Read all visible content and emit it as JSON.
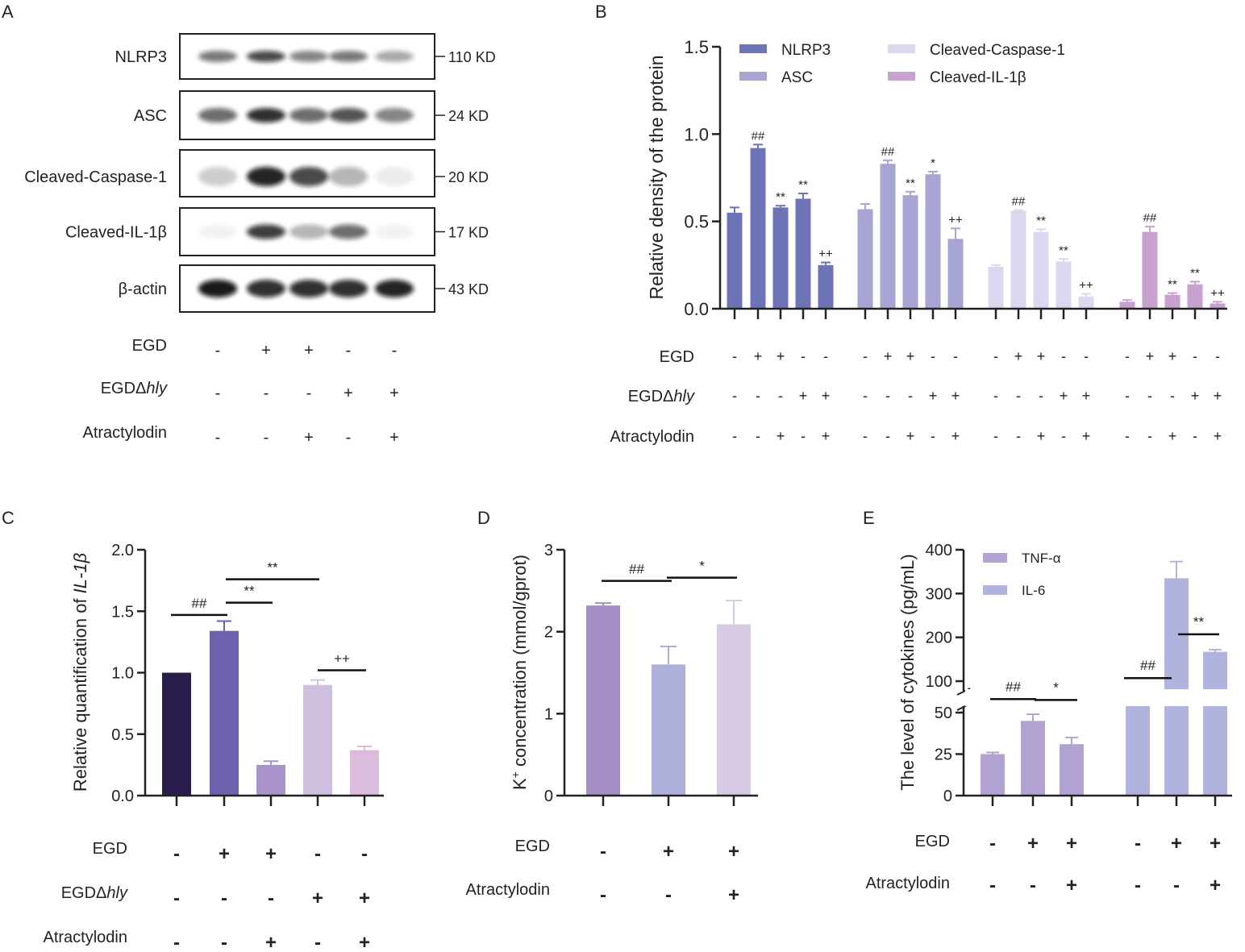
{
  "figure_type": "multi-panel figure",
  "panel_labels": [
    "A",
    "B",
    "C",
    "D",
    "E"
  ],
  "colors": {
    "nlrp3": "#6E74B8",
    "asc": "#A7A5D3",
    "caspase": "#DCD7EE",
    "il1b": "#C8A2CE",
    "c_bars": [
      "#2A1D4C",
      "#6E62AE",
      "#A894CA",
      "#CFC0DF",
      "#DCBCDD"
    ],
    "d_bars": [
      "#A38EC3",
      "#AEB0DC",
      "#D7CBE4"
    ],
    "tnf": "#B3A3D3",
    "il6": "#B1B3DF",
    "axis": "#222222"
  },
  "blot": {
    "rows": [
      {
        "protein": "NLRP3",
        "size": "110 KD"
      },
      {
        "protein": "ASC",
        "size": "24 KD"
      },
      {
        "protein": "Cleaved-Caspase-1",
        "size": "20 KD"
      },
      {
        "protein": "Cleaved-IL-1β",
        "size": "17 KD"
      },
      {
        "protein": "β-actin",
        "size": "43 KD"
      }
    ],
    "treatments": [
      {
        "label_main": "EGD",
        "label_italic": "",
        "signs": [
          "-",
          "+",
          "+",
          "-",
          "-"
        ]
      },
      {
        "label_main": "EGDΔ",
        "label_italic": "hly",
        "signs": [
          "-",
          "-",
          "-",
          "+",
          "+"
        ]
      },
      {
        "label_main": "Atractylodin",
        "label_italic": "",
        "signs": [
          "-",
          "-",
          "+",
          "-",
          "+"
        ]
      }
    ]
  },
  "chart_data": [
    {
      "panel": "B",
      "type": "bar",
      "ylabel": "Relative density of the protein",
      "ylim": [
        0,
        1.5
      ],
      "yticks": [
        "0.0",
        "0.5",
        "1.0",
        "1.5"
      ],
      "legend": [
        "NLRP3",
        "ASC",
        "Cleaved-Caspase-1",
        "Cleaved-IL-1β"
      ],
      "series": [
        {
          "name": "NLRP3",
          "values": [
            0.55,
            0.92,
            0.58,
            0.63,
            0.25
          ],
          "errors": [
            0.03,
            0.02,
            0.01,
            0.03,
            0.015
          ],
          "marks": [
            "",
            "##",
            "**",
            "**",
            "++"
          ]
        },
        {
          "name": "ASC",
          "values": [
            0.57,
            0.83,
            0.65,
            0.77,
            0.4
          ],
          "errors": [
            0.03,
            0.02,
            0.02,
            0.015,
            0.06
          ],
          "marks": [
            "",
            "##",
            "**",
            "*",
            "++"
          ]
        },
        {
          "name": "Cleaved-Caspase-1",
          "values": [
            0.24,
            0.56,
            0.44,
            0.27,
            0.07
          ],
          "errors": [
            0.01,
            0.005,
            0.015,
            0.015,
            0.015
          ],
          "marks": [
            "",
            "##",
            "**",
            "**",
            "++"
          ]
        },
        {
          "name": "Cleaved-IL-1β",
          "values": [
            0.04,
            0.44,
            0.08,
            0.14,
            0.03
          ],
          "errors": [
            0.01,
            0.03,
            0.01,
            0.015,
            0.01
          ],
          "marks": [
            "",
            "##",
            "**",
            "**",
            "++"
          ]
        }
      ],
      "treatments": [
        {
          "label_main": "EGD",
          "label_italic": "",
          "signs": [
            "-",
            "+",
            "+",
            "-",
            "-"
          ]
        },
        {
          "label_main": "EGDΔ",
          "label_italic": "hly",
          "signs": [
            "-",
            "-",
            "-",
            "+",
            "+"
          ]
        },
        {
          "label_main": "Atractylodin",
          "label_italic": "",
          "signs": [
            "-",
            "-",
            "+",
            "-",
            "+"
          ]
        }
      ]
    },
    {
      "panel": "C",
      "type": "bar",
      "ylabel_main": "Relative quantification of ",
      "ylabel_italic": "IL-1β",
      "ylim": [
        0,
        2.0
      ],
      "yticks": [
        "0.0",
        "0.5",
        "1.0",
        "1.5",
        "2.0"
      ],
      "values": [
        1.0,
        1.34,
        0.25,
        0.9,
        0.37
      ],
      "errors": [
        0,
        0.08,
        0.03,
        0.04,
        0.03
      ],
      "brackets": [
        {
          "from": 0,
          "to": 1,
          "mark": "##",
          "y": 1.47
        },
        {
          "from": 1,
          "to": 2,
          "mark": "**",
          "y": 1.57
        },
        {
          "from": 1,
          "to": 3,
          "mark": "**",
          "y": 1.76
        },
        {
          "from": 3,
          "to": 4,
          "mark": "++",
          "y": 1.02
        }
      ],
      "treatments": [
        {
          "label_main": "EGD",
          "label_italic": "",
          "signs": [
            "-",
            "+",
            "+",
            "-",
            "-"
          ]
        },
        {
          "label_main": "EGDΔ",
          "label_italic": "hly",
          "signs": [
            "-",
            "-",
            "-",
            "+",
            "+"
          ]
        },
        {
          "label_main": "Atractylodin",
          "label_italic": "",
          "signs": [
            "-",
            "-",
            "+",
            "-",
            "+"
          ]
        }
      ]
    },
    {
      "panel": "D",
      "type": "bar",
      "ylabel_k": "K",
      "ylabel_sup": "+",
      "ylabel_rest": " concentration (mmol/gprot)",
      "ylim": [
        0,
        3
      ],
      "yticks": [
        "0",
        "1",
        "2",
        "3"
      ],
      "values": [
        2.32,
        1.6,
        2.09
      ],
      "errors": [
        0.03,
        0.22,
        0.29
      ],
      "brackets": [
        {
          "from": 0,
          "to": 1,
          "mark": "##",
          "y": 2.62
        },
        {
          "from": 1,
          "to": 2,
          "mark": "*",
          "y": 2.66
        }
      ],
      "treatments": [
        {
          "label_main": "EGD",
          "label_italic": "",
          "signs": [
            "-",
            "+",
            "+"
          ]
        },
        {
          "label_main": "Atractylodin",
          "label_italic": "",
          "signs": [
            "-",
            "-",
            "+"
          ]
        }
      ]
    },
    {
      "panel": "E",
      "type": "bar",
      "ylabel": "The level of cytokines (pg/mL)",
      "axis_break": [
        50,
        100
      ],
      "ylim": [
        0,
        400
      ],
      "yticks_lower": [
        "0",
        "25",
        "50"
      ],
      "yticks_upper": [
        "100",
        "200",
        "300",
        "400"
      ],
      "legend": [
        "TNF-α",
        "IL-6"
      ],
      "series": [
        {
          "name": "TNF-α",
          "values": [
            25,
            45,
            31
          ],
          "errors": [
            1,
            4,
            4
          ]
        },
        {
          "name": "IL-6",
          "values": [
            64,
            335,
            167
          ],
          "errors": [
            15,
            38,
            5
          ]
        }
      ],
      "brackets": [
        {
          "series": 0,
          "from": 0,
          "to": 1,
          "mark": "##",
          "y": 59
        },
        {
          "series": 0,
          "from": 1,
          "to": 2,
          "mark": "*",
          "y": 57
        },
        {
          "series": 1,
          "from": 0,
          "to": 1,
          "mark": "##",
          "y": 107
        },
        {
          "series": 1,
          "from": 1,
          "to": 2,
          "mark": "**",
          "y": 207
        }
      ],
      "treatments": [
        {
          "label_main": "EGD",
          "label_italic": "",
          "signs": [
            "-",
            "+",
            "+",
            "-",
            "+",
            "+"
          ]
        },
        {
          "label_main": "Atractylodin",
          "label_italic": "",
          "signs": [
            "-",
            "-",
            "+",
            "-",
            "-",
            "+"
          ]
        }
      ]
    }
  ]
}
